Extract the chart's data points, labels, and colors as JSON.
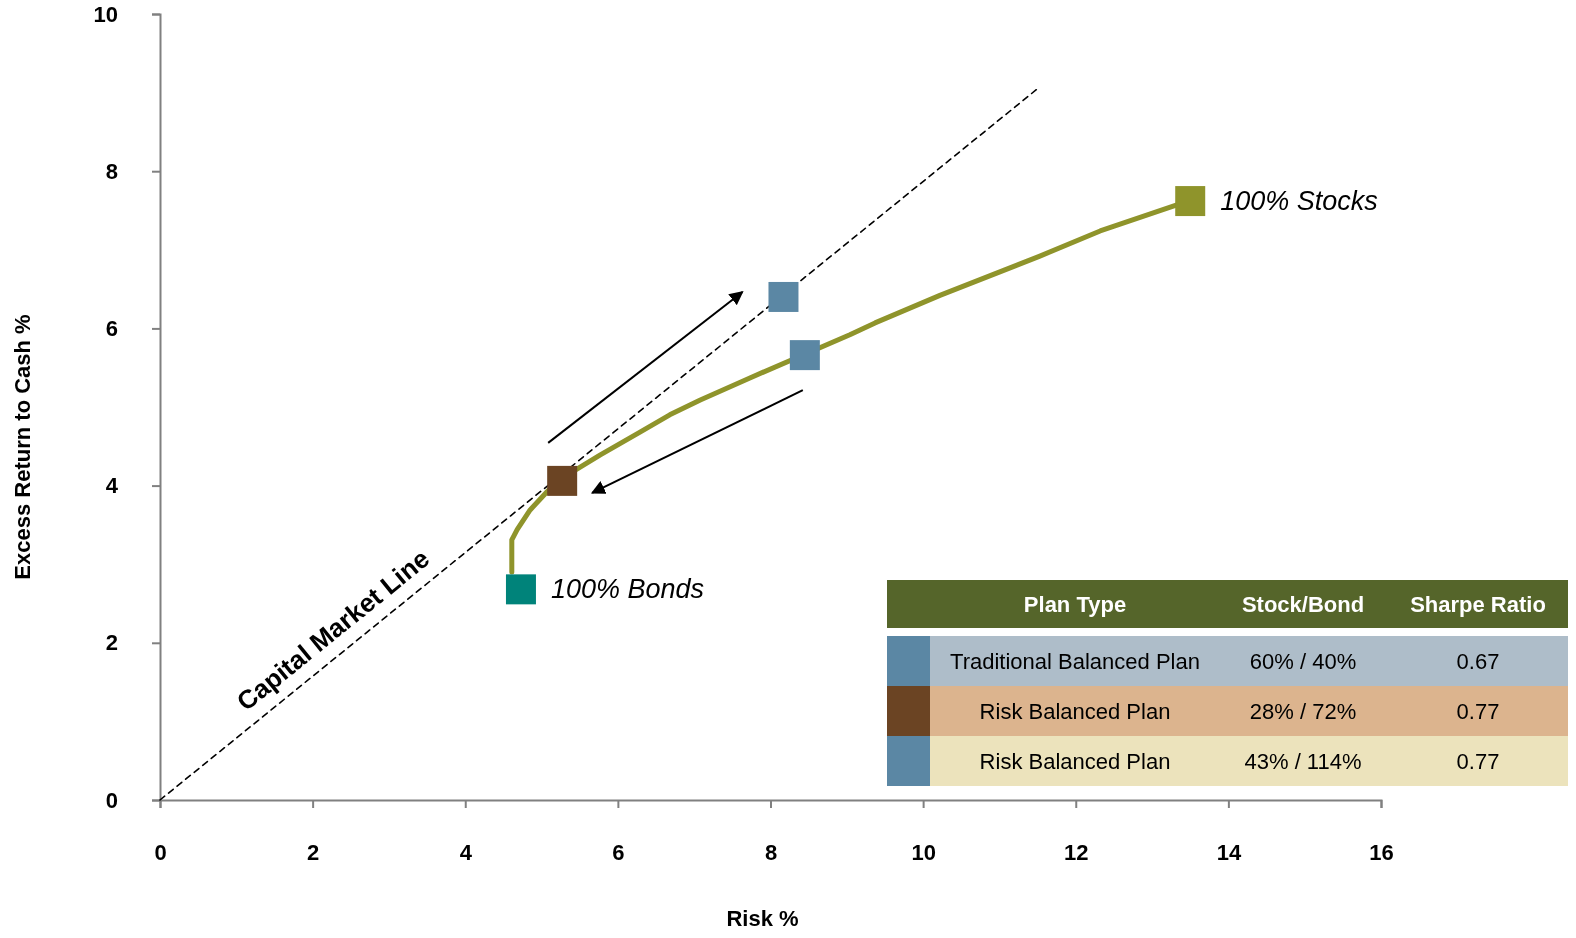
{
  "chart_data": {
    "type": "line",
    "xlabel": "Risk %",
    "ylabel": "Excess Return to Cash %",
    "xlim": [
      0,
      16
    ],
    "xticks": [
      0,
      2,
      4,
      6,
      8,
      10,
      12,
      14,
      16
    ],
    "ylim": [
      0,
      10
    ],
    "yticks": [
      0,
      2,
      4,
      6,
      8,
      10
    ],
    "grid": false,
    "legend": "bottom right",
    "legend_title": "Plan Type",
    "series": [
      {
        "color": "#8f942b",
        "marker": "none",
        "line_style": "solid",
        "x": [
          4.61,
          4.61,
          4.68,
          4.85,
          5.09,
          5.28,
          5.77,
          6.29,
          6.68,
          7.08,
          7.73,
          8.45,
          9.04,
          9.37,
          10.22,
          11.53,
          12.32,
          13.5
        ],
        "values": [
          2.9,
          3.31,
          3.44,
          3.69,
          3.94,
          4.1,
          4.39,
          4.68,
          4.9,
          5.09,
          5.37,
          null,
          5.92,
          6.07,
          6.42,
          6.92,
          7.24,
          7.63
        ]
      },
      {
        "type": "line",
        "name": "Capital Market Line",
        "color": "#000000",
        "marker": "none",
        "line_style": "dashed",
        "x": [
          0,
          11.5
        ],
        "values": [
          0,
          9.05
        ]
      },
      {
        "type": "scatter",
        "name": "100% Bonds",
        "color": "#00837a",
        "marker": "square",
        "x": [
          4.73
        ],
        "values": [
          2.68
        ]
      },
      {
        "type": "scatter",
        "name": "100% Stocks",
        "color": "#8f942b",
        "marker": "square",
        "x": [
          13.5
        ],
        "values": [
          7.62
        ]
      },
      {
        "type": "scatter",
        "name": "Traditional Balanced Plan",
        "color": "#5b87a4",
        "marker": "square",
        "x": [
          8.45
        ],
        "values": [
          5.66
        ]
      },
      {
        "type": "scatter",
        "name": "Risk Balanced Plan",
        "color": "#6b4423",
        "marker": "square",
        "x": [
          5.27
        ],
        "values": [
          4.06
        ]
      },
      {
        "type": "scatter",
        "name": "Risk Balanced Plan",
        "color": "#5b87a4",
        "marker": "square",
        "x": [
          8.17
        ],
        "values": [
          6.4
        ]
      }
    ],
    "annotations": [
      "Stock/Bond",
      "Sharpe Ratio",
      "60% / 40%",
      "0.67",
      "28% / 72%",
      "0.77",
      "43% / 114%",
      "0.77"
    ]
  }
}
